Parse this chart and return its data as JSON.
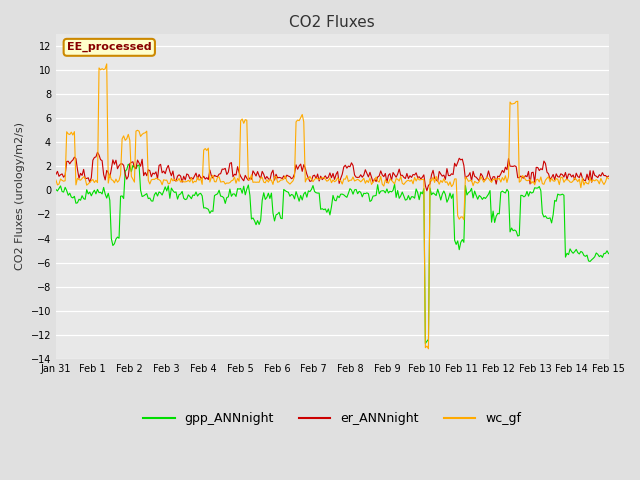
{
  "title": "CO2 Fluxes",
  "ylabel": "CO2 Fluxes (urology/m2/s)",
  "ylim": [
    -14,
    13
  ],
  "yticks": [
    -14,
    -12,
    -10,
    -8,
    -6,
    -4,
    -2,
    0,
    2,
    4,
    6,
    8,
    10,
    12
  ],
  "n_points": 360,
  "bg_color": "#e0e0e0",
  "plot_bg_color": "#e8e8e8",
  "green_color": "#00dd00",
  "red_color": "#cc0000",
  "orange_color": "#ffaa00",
  "title_color": "#333333",
  "annotation_text": "EE_processed",
  "annotation_bg": "#ffffcc",
  "annotation_border": "#cc8800",
  "annotation_text_color": "#880000",
  "legend_labels": [
    "gpp_ANNnight",
    "er_ANNnight",
    "wc_gf"
  ],
  "line_width": 0.8,
  "xtick_labels": [
    "Jan 31",
    "Feb 1",
    "Feb 2",
    "Feb 3",
    "Feb 4",
    "Feb 5",
    "Feb 6",
    "Feb 7",
    "Feb 8",
    "Feb 9",
    "Feb 10",
    "Feb 11",
    "Feb 12",
    "Feb 13",
    "Feb 14",
    "Feb 15"
  ],
  "n_days": 15
}
